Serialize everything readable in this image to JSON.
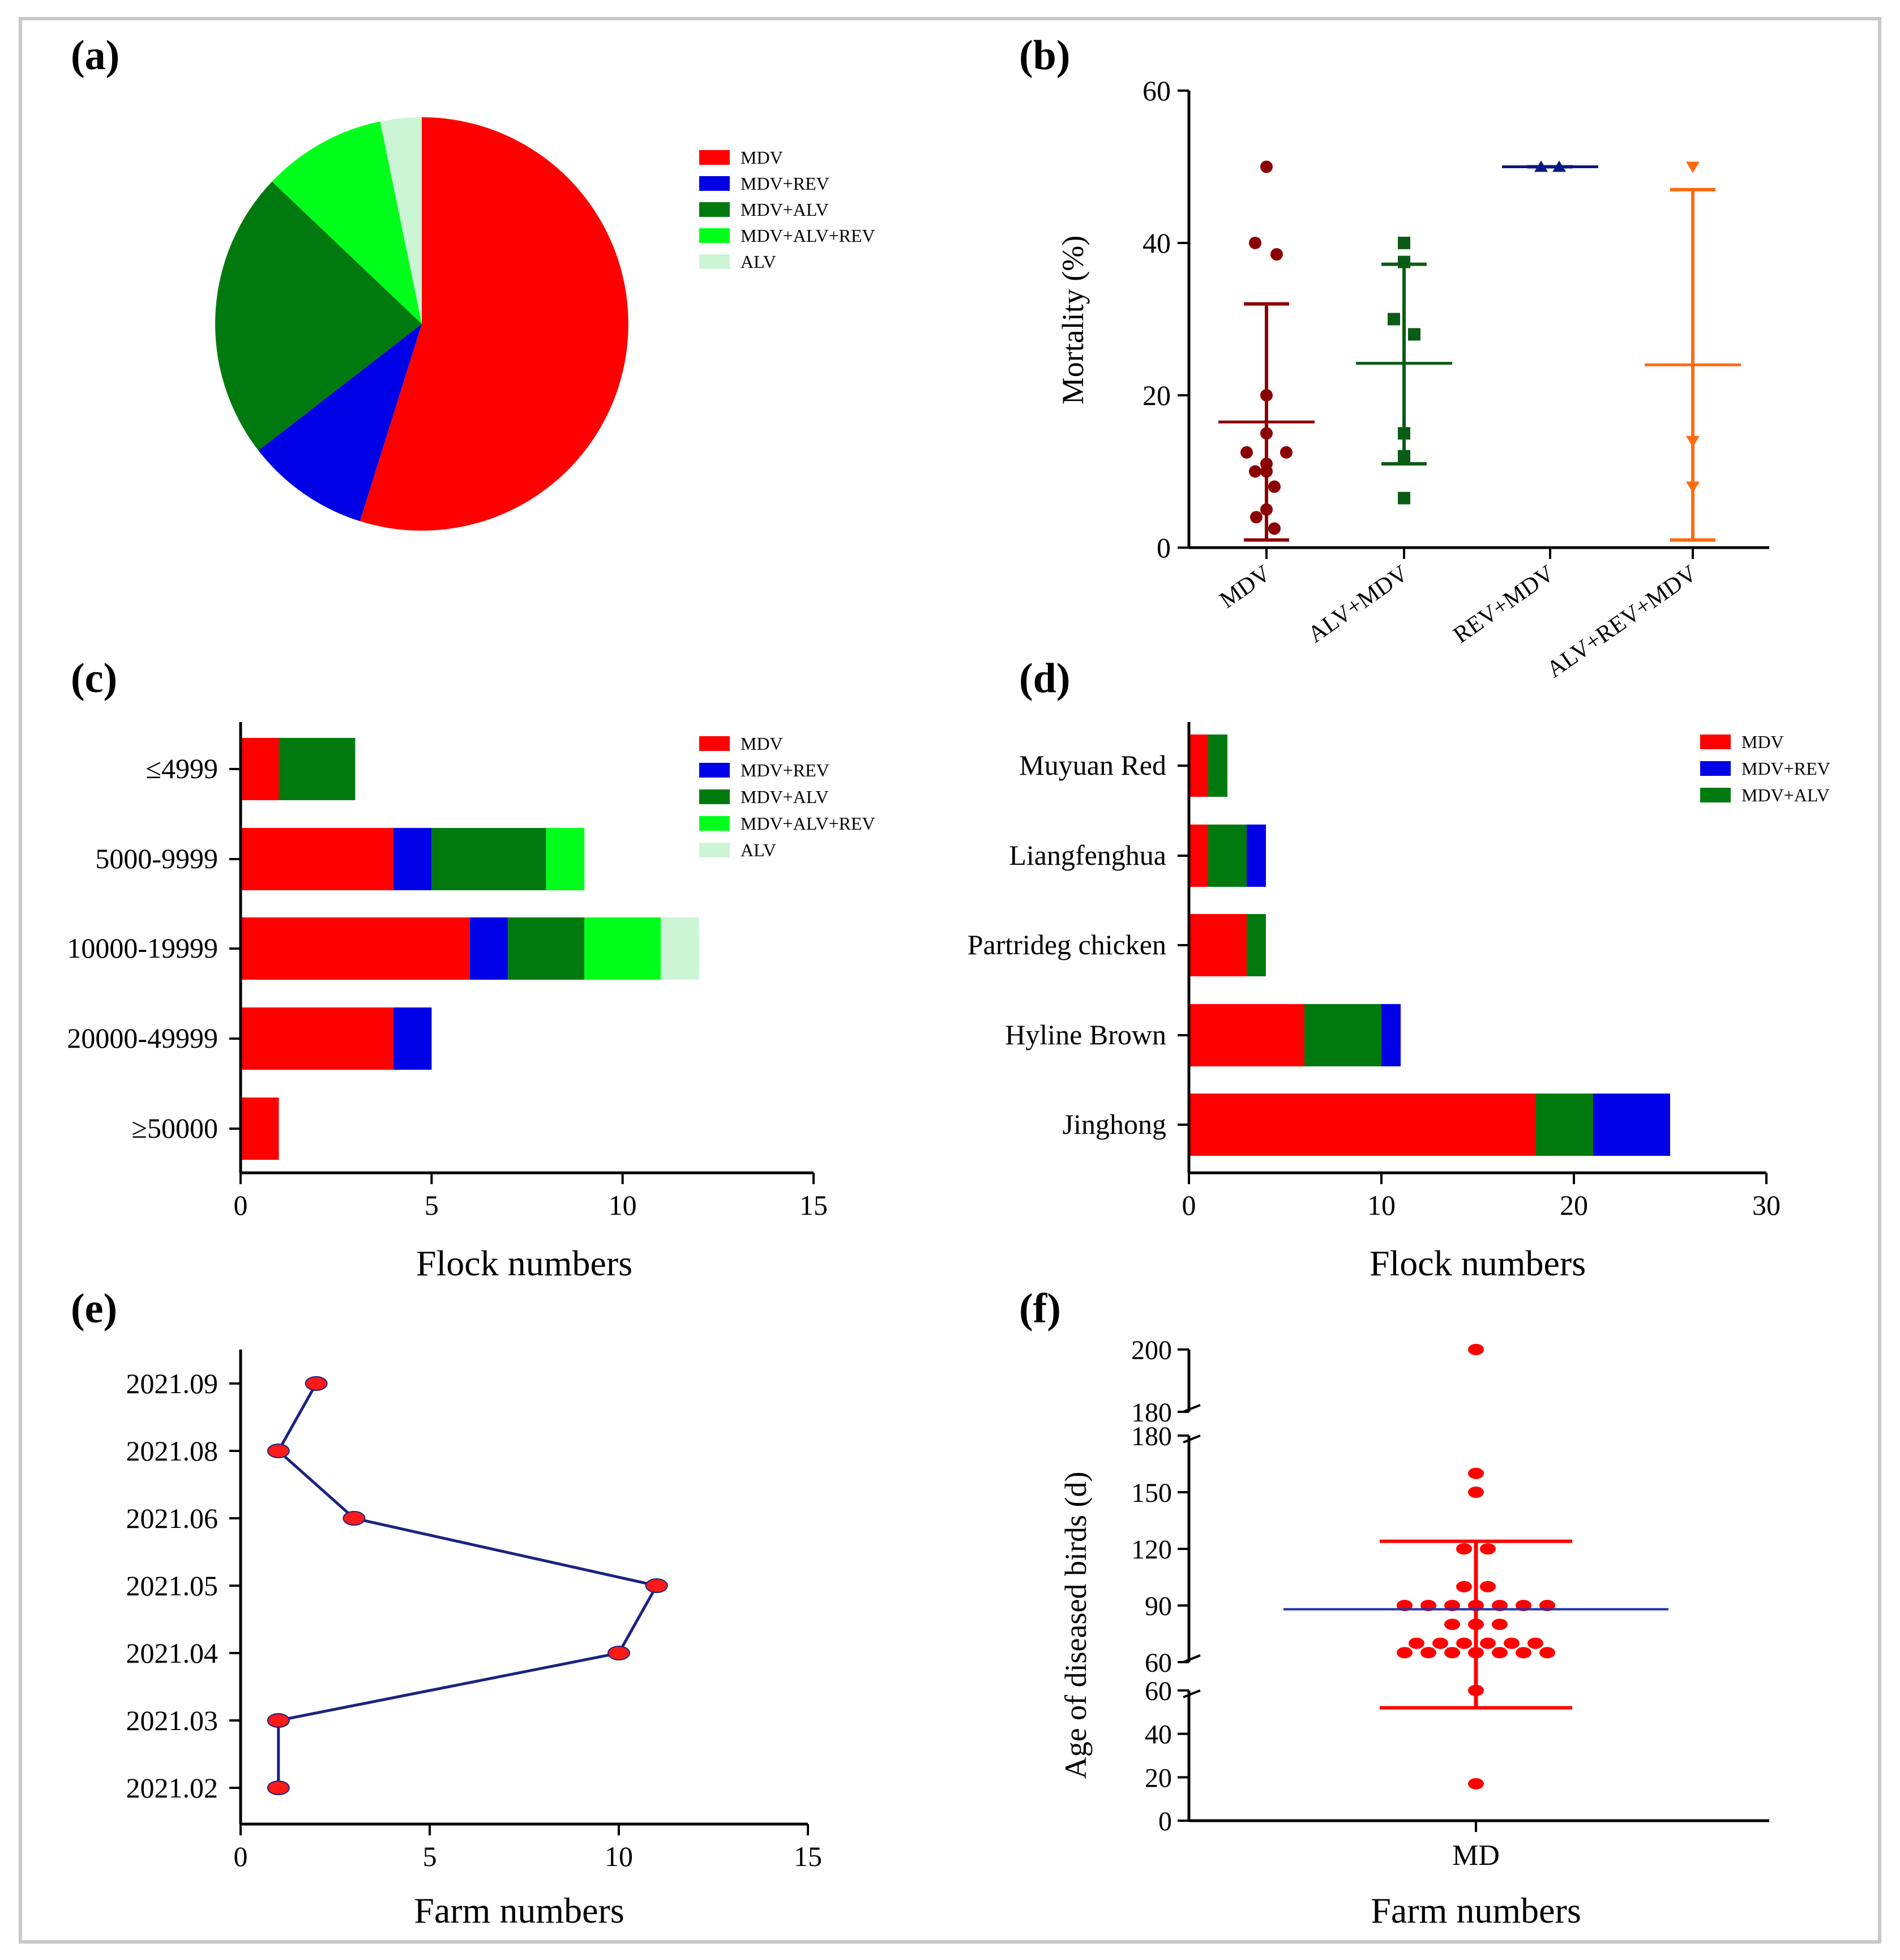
{
  "colors": {
    "MDV": "#ff0000",
    "MDV+REV": "#0000e6",
    "MDV+ALV": "#007a0f",
    "MDV+ALV+REV": "#00ff1a",
    "ALV": "#ccf5d6",
    "b_mdv": "#8b0000",
    "b_alv_mdv": "#0a5c14",
    "b_rev_mdv": "#0a1a80",
    "b_alv_rev_mdv": "#ff6a10",
    "line_e": "#1a237e",
    "marker_e": "#ff1a1a",
    "f_points": "#ff0000",
    "f_mean": "#2233aa",
    "frame": "#c8c8c8"
  },
  "chart_data": [
    {
      "id": "a",
      "panel_label": "(a)",
      "type": "pie",
      "labels": [
        "MDV",
        "MDV+REV",
        "MDV+ALV",
        "MDV+ALV+REV",
        "ALV"
      ],
      "values": [
        17,
        3,
        7,
        3,
        1
      ],
      "legend": [
        "MDV",
        "MDV+REV",
        "MDV+ALV",
        "MDV+ALV+REV",
        "ALV"
      ],
      "legend_position": "right"
    },
    {
      "id": "b",
      "panel_label": "(b)",
      "type": "scatter",
      "ylabel": "Mortality (%)",
      "ylim": [
        0,
        60
      ],
      "yticks": [
        "0",
        "20",
        "40",
        "60"
      ],
      "categories": [
        "MDV",
        "ALV+MDV",
        "REV+MDV",
        "ALV+REV+MDV"
      ],
      "groups": [
        {
          "name": "MDV",
          "points": [
            50,
            40,
            38.5,
            20,
            15,
            12.5,
            12.5,
            11,
            10,
            10,
            8,
            5,
            4,
            2.5
          ],
          "mean": 16.5,
          "sd_low": 1,
          "sd_high": 32,
          "marker": "circle"
        },
        {
          "name": "ALV+MDV",
          "points": [
            40,
            37.5,
            30,
            28,
            15,
            12,
            6.5
          ],
          "mean": 24.2,
          "sd_low": 11,
          "sd_high": 37.2,
          "marker": "square"
        },
        {
          "name": "REV+MDV",
          "points": [
            50,
            50
          ],
          "mean": 50,
          "sd_low": 50,
          "sd_high": 50,
          "marker": "triangle-up"
        },
        {
          "name": "ALV+REV+MDV",
          "points": [
            50,
            14,
            8
          ],
          "mean": 24,
          "sd_low": 1,
          "sd_high": 47,
          "marker": "triangle-down"
        }
      ]
    },
    {
      "id": "c",
      "panel_label": "(c)",
      "type": "bar",
      "orientation": "horizontal",
      "stacked": true,
      "xlabel": "Flock numbers",
      "xlim": [
        0,
        15
      ],
      "xticks": [
        "0",
        "5",
        "10",
        "15"
      ],
      "categories": [
        "≤4999",
        "5000-9999",
        "10000-19999",
        "20000-49999",
        "≥50000"
      ],
      "series": [
        {
          "name": "MDV",
          "values": [
            1,
            4,
            6,
            4,
            1
          ]
        },
        {
          "name": "MDV+REV",
          "values": [
            0,
            1,
            1,
            1,
            0
          ]
        },
        {
          "name": "MDV+ALV",
          "values": [
            2,
            3,
            2,
            0,
            0
          ]
        },
        {
          "name": "MDV+ALV+REV",
          "values": [
            0,
            1,
            2,
            0,
            0
          ]
        },
        {
          "name": "ALV",
          "values": [
            0,
            0,
            1,
            0,
            0
          ]
        }
      ],
      "legend_position": "top-right"
    },
    {
      "id": "d",
      "panel_label": "(d)",
      "type": "bar",
      "orientation": "horizontal",
      "stacked": true,
      "xlabel": "Flock numbers",
      "xlim": [
        0,
        30
      ],
      "xticks": [
        "0",
        "10",
        "20",
        "30"
      ],
      "categories": [
        "Muyuan Red",
        "Liangfenghua",
        "Partrideg chicken",
        "Hyline Brown",
        "Jinghong"
      ],
      "series": [
        {
          "name": "MDV",
          "values": [
            1,
            1,
            3,
            6,
            18
          ]
        },
        {
          "name": "MDV+ALV",
          "values": [
            1,
            2,
            1,
            4,
            3
          ]
        },
        {
          "name": "MDV+REV",
          "values": [
            0,
            1,
            0,
            1,
            4
          ]
        }
      ],
      "legend": [
        "MDV",
        "MDV+REV",
        "MDV+ALV"
      ],
      "legend_position": "top-right"
    },
    {
      "id": "e",
      "panel_label": "(e)",
      "type": "line",
      "xlabel": "Farm numbers",
      "xlim": [
        0,
        15
      ],
      "xticks": [
        "0",
        "5",
        "10",
        "15"
      ],
      "categories": [
        "2021.09",
        "2021.08",
        "2021.06",
        "2021.05",
        "2021.04",
        "2021.03",
        "2021.02"
      ],
      "values": [
        2,
        1,
        3,
        11,
        10,
        1,
        1
      ]
    },
    {
      "id": "f",
      "panel_label": "(f)",
      "type": "scatter",
      "xlabel": "Farm numbers",
      "ylabel": "Age of diseased birds (d)",
      "category": "MD",
      "segments": [
        {
          "range": [
            0,
            60
          ],
          "ticks": [
            "0",
            "20",
            "40",
            "60"
          ]
        },
        {
          "range": [
            60,
            180
          ],
          "ticks": [
            "60",
            "90",
            "120",
            "150",
            "180"
          ]
        },
        {
          "range": [
            180,
            200
          ],
          "ticks": [
            "180",
            "200"
          ]
        }
      ],
      "points": [
        200,
        160,
        150,
        120,
        120,
        100,
        100,
        90,
        90,
        90,
        90,
        90,
        90,
        90,
        80,
        80,
        80,
        70,
        70,
        70,
        70,
        70,
        70,
        65,
        65,
        65,
        65,
        65,
        65,
        65,
        60,
        17
      ],
      "mean": 88,
      "sd_low": 52,
      "sd_high": 124
    }
  ]
}
